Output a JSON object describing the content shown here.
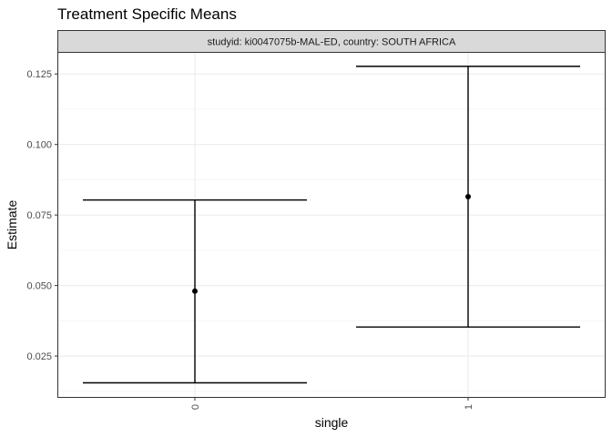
{
  "chart_data": {
    "type": "errorbar",
    "title": "Treatment Specific Means",
    "facet_label": "studyid: ki0047075b-MAL-ED, country: SOUTH AFRICA",
    "xlabel": "single",
    "ylabel": "Estimate",
    "categories": [
      "0",
      "1"
    ],
    "points": [
      {
        "x": "0",
        "estimate": 0.048,
        "lower": 0.0155,
        "upper": 0.0803
      },
      {
        "x": "1",
        "estimate": 0.0815,
        "lower": 0.0353,
        "upper": 0.1277
      }
    ],
    "ylim": [
      0.0105,
      0.1325
    ],
    "yticks": [
      0.025,
      0.05,
      0.075,
      0.1,
      0.125
    ],
    "ytick_labels": [
      "0.025",
      "0.050",
      "0.075",
      "0.100",
      "0.125"
    ],
    "grid": true,
    "legend": "none"
  }
}
